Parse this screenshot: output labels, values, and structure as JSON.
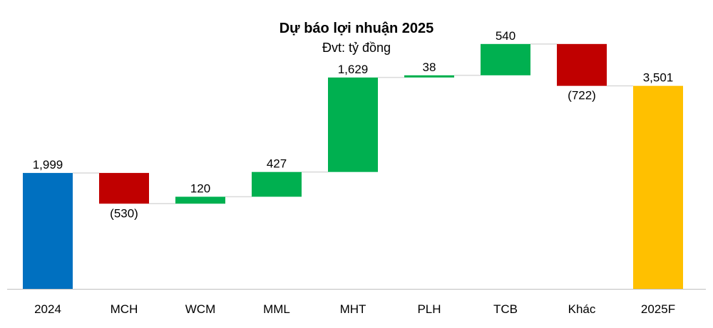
{
  "chart_data": {
    "type": "waterfall",
    "title": "Dự báo lợi nhuận 2025",
    "subtitle": "Đvt: tỷ đồng",
    "categories": [
      "2024",
      "MCH",
      "WCM",
      "MML",
      "MHT",
      "PLH",
      "TCB",
      "Khác",
      "2025F"
    ],
    "values": [
      1999,
      -530,
      120,
      427,
      1629,
      38,
      540,
      -722,
      3501
    ],
    "labels": [
      "1,999",
      "(530)",
      "120",
      "427",
      "1,629",
      "38",
      "540",
      "(722)",
      "3,501"
    ],
    "kinds": [
      "total",
      "delta",
      "delta",
      "delta",
      "delta",
      "delta",
      "delta",
      "delta",
      "total"
    ],
    "colors": {
      "start_total": "#0070C0",
      "increase": "#00B050",
      "decrease": "#C00000",
      "end_total": "#FFC000",
      "connector": "#D9D9D9",
      "axis": "#BFBFBF"
    },
    "ylim": [
      0,
      4000
    ]
  }
}
